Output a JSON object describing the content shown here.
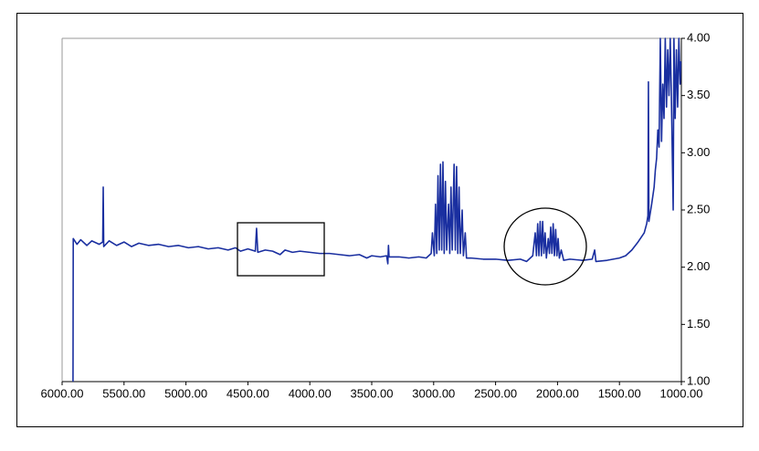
{
  "chart_data": {
    "type": "line",
    "color": "#1a2fa0",
    "xlim": [
      6000,
      1000
    ],
    "ylim": [
      1,
      4
    ],
    "xticks": [
      {
        "value": 6000,
        "label": "6000.00"
      },
      {
        "value": 5500,
        "label": "5500.00"
      },
      {
        "value": 5000,
        "label": "5000.00"
      },
      {
        "value": 4500,
        "label": "4500.00"
      },
      {
        "value": 4000,
        "label": "4000.00"
      },
      {
        "value": 3500,
        "label": "3500.00"
      },
      {
        "value": 3000,
        "label": "3000.00"
      },
      {
        "value": 2500,
        "label": "2500.00"
      },
      {
        "value": 2000,
        "label": "2000.00"
      },
      {
        "value": 1500,
        "label": "1500.00"
      },
      {
        "value": 1000,
        "label": "1000.00"
      }
    ],
    "yticks": [
      {
        "value": 1,
        "label": "1.00"
      },
      {
        "value": 1.5,
        "label": "1.50"
      },
      {
        "value": 2,
        "label": "2.00"
      },
      {
        "value": 2.5,
        "label": "2.50"
      },
      {
        "value": 3,
        "label": "3.00"
      },
      {
        "value": 3.5,
        "label": "3.50"
      },
      {
        "value": 4,
        "label": "4.00"
      }
    ],
    "x": [
      5912,
      5910,
      5880,
      5850,
      5800,
      5760,
      5700,
      5672,
      5668,
      5664,
      5620,
      5560,
      5500,
      5440,
      5380,
      5300,
      5220,
      5140,
      5060,
      4980,
      4900,
      4820,
      4740,
      4660,
      4600,
      4560,
      4500,
      4440,
      4430,
      4420,
      4360,
      4300,
      4240,
      4200,
      4140,
      4080,
      4000,
      3920,
      3840,
      3760,
      3680,
      3600,
      3540,
      3500,
      3430,
      3380,
      3370,
      3365,
      3360,
      3280,
      3200,
      3120,
      3060,
      3020,
      3010,
      2995,
      2985,
      2975,
      2965,
      2955,
      2945,
      2935,
      2925,
      2915,
      2905,
      2895,
      2880,
      2870,
      2860,
      2850,
      2835,
      2825,
      2815,
      2805,
      2795,
      2785,
      2770,
      2760,
      2745,
      2735,
      2700,
      2600,
      2500,
      2400,
      2300,
      2250,
      2200,
      2180,
      2170,
      2160,
      2150,
      2140,
      2130,
      2120,
      2110,
      2100,
      2090,
      2075,
      2065,
      2055,
      2045,
      2035,
      2025,
      2015,
      2005,
      1995,
      1985,
      1970,
      1950,
      1900,
      1800,
      1720,
      1700,
      1690,
      1600,
      1500,
      1450,
      1400,
      1350,
      1300,
      1280,
      1270,
      1266,
      1262,
      1240,
      1220,
      1210,
      1200,
      1190,
      1180,
      1170,
      1160,
      1150,
      1140,
      1130,
      1120,
      1110,
      1100,
      1090,
      1080,
      1066,
      1060,
      1050,
      1040,
      1030,
      1020,
      1010,
      1005
    ],
    "values": [
      1.0,
      2.25,
      2.2,
      2.24,
      2.19,
      2.23,
      2.2,
      2.22,
      2.7,
      2.18,
      2.23,
      2.19,
      2.22,
      2.18,
      2.21,
      2.19,
      2.2,
      2.18,
      2.19,
      2.17,
      2.18,
      2.16,
      2.17,
      2.15,
      2.17,
      2.14,
      2.16,
      2.14,
      2.34,
      2.13,
      2.15,
      2.14,
      2.11,
      2.15,
      2.13,
      2.14,
      2.13,
      2.12,
      2.12,
      2.11,
      2.1,
      2.11,
      2.08,
      2.1,
      2.09,
      2.1,
      2.03,
      2.19,
      2.09,
      2.09,
      2.08,
      2.09,
      2.08,
      2.12,
      2.3,
      2.1,
      2.55,
      2.12,
      2.8,
      2.15,
      2.9,
      2.15,
      2.92,
      2.12,
      2.75,
      2.15,
      2.55,
      2.12,
      2.7,
      2.15,
      2.9,
      2.15,
      2.88,
      2.12,
      2.7,
      2.12,
      2.5,
      2.1,
      2.3,
      2.08,
      2.08,
      2.07,
      2.07,
      2.06,
      2.07,
      2.05,
      2.1,
      2.3,
      2.1,
      2.38,
      2.1,
      2.4,
      2.1,
      2.4,
      2.12,
      2.3,
      2.08,
      2.25,
      2.12,
      2.35,
      2.12,
      2.38,
      2.1,
      2.33,
      2.1,
      2.25,
      2.08,
      2.15,
      2.06,
      2.07,
      2.06,
      2.07,
      2.15,
      2.05,
      2.06,
      2.08,
      2.1,
      2.15,
      2.22,
      2.3,
      2.38,
      2.45,
      3.62,
      2.4,
      2.55,
      2.7,
      2.85,
      2.95,
      3.2,
      3.05,
      4.0,
      3.1,
      3.6,
      3.3,
      4.0,
      3.4,
      3.9,
      3.5,
      4.0,
      3.45,
      2.5,
      4.0,
      3.3,
      3.9,
      3.4,
      4.0,
      3.6,
      3.8
    ]
  }
}
